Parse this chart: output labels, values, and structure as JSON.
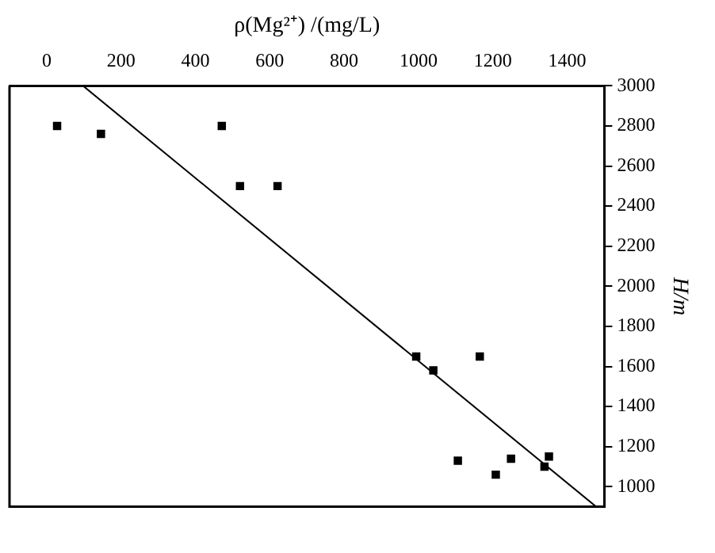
{
  "chart_data": {
    "type": "scatter",
    "xlabel": "ρ(Mg²⁺) /(mg/L)",
    "ylabel": "H/m",
    "marker": "square",
    "grid": false,
    "legend": false,
    "xlim": [
      -100,
      1500
    ],
    "xticks": [
      0,
      200,
      400,
      600,
      800,
      1000,
      1200,
      1400
    ],
    "ylim": [
      900,
      3000
    ],
    "yticks": [
      1000,
      1200,
      1400,
      1600,
      1800,
      2000,
      2200,
      2400,
      2600,
      2800,
      3000
    ],
    "series": [
      {
        "color": "#000000",
        "x": [
          28,
          146,
          471,
          520,
          621,
          994,
          1040,
          1165,
          1106,
          1208,
          1249,
          1339,
          1351
        ],
        "values": [
          2800,
          2760,
          2800,
          2500,
          2500,
          1650,
          1580,
          1650,
          1130,
          1060,
          1140,
          1100,
          1150
        ]
      },
      {
        "type": "line",
        "color": "#000000",
        "marker": "none",
        "x": [
          98,
          1478
        ],
        "values": [
          3000,
          900
        ]
      }
    ]
  }
}
